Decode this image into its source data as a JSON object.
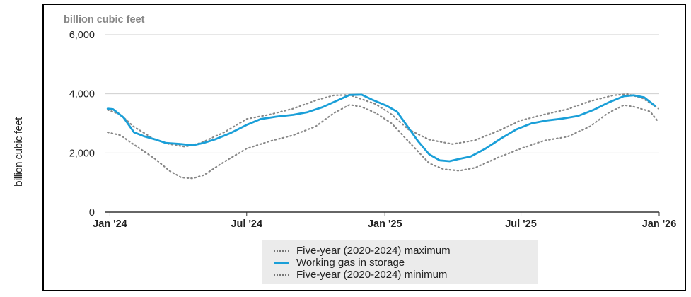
{
  "page": {
    "outer_ylabel": "billion cubic feet"
  },
  "chart_data": {
    "type": "line",
    "ylabel": "billion cubic feet",
    "ylim": [
      0,
      6000
    ],
    "yticks": [
      0,
      2000,
      4000,
      6000
    ],
    "ytick_labels": [
      "0",
      "2,000",
      "4,000",
      "6,000"
    ],
    "x_range": [
      "2023-12-25",
      "2026-01-01"
    ],
    "xticks": [
      {
        "date": "2024-01-01",
        "label": "Jan '24"
      },
      {
        "date": "2024-07-01",
        "label": "Jul '24"
      },
      {
        "date": "2025-01-01",
        "label": "Jan '25"
      },
      {
        "date": "2025-07-01",
        "label": "Jul '25"
      },
      {
        "date": "2026-01-01",
        "label": "Jan '26"
      }
    ],
    "grid": "horizontal",
    "legend_position": "bottom-center",
    "series": [
      {
        "name": "Five-year (2020-2024) maximum",
        "style": "dotted",
        "color": "#888888",
        "points": [
          [
            "2023-12-29",
            3460
          ],
          [
            "2024-01-15",
            3300
          ],
          [
            "2024-02-01",
            2900
          ],
          [
            "2024-03-01",
            2450
          ],
          [
            "2024-03-20",
            2300
          ],
          [
            "2024-04-10",
            2210
          ],
          [
            "2024-05-01",
            2340
          ],
          [
            "2024-06-01",
            2700
          ],
          [
            "2024-07-01",
            3150
          ],
          [
            "2024-08-01",
            3300
          ],
          [
            "2024-09-01",
            3500
          ],
          [
            "2024-10-01",
            3780
          ],
          [
            "2024-10-25",
            3950
          ],
          [
            "2024-11-15",
            3960
          ],
          [
            "2024-12-01",
            3820
          ],
          [
            "2024-12-20",
            3650
          ],
          [
            "2025-01-10",
            3300
          ],
          [
            "2025-02-01",
            2800
          ],
          [
            "2025-03-01",
            2450
          ],
          [
            "2025-04-01",
            2300
          ],
          [
            "2025-05-01",
            2430
          ],
          [
            "2025-06-01",
            2750
          ],
          [
            "2025-07-01",
            3100
          ],
          [
            "2025-08-01",
            3300
          ],
          [
            "2025-09-01",
            3480
          ],
          [
            "2025-10-01",
            3750
          ],
          [
            "2025-11-01",
            3950
          ],
          [
            "2025-11-20",
            3990
          ],
          [
            "2025-12-10",
            3850
          ],
          [
            "2025-12-31",
            3500
          ]
        ]
      },
      {
        "name": "Working gas in storage",
        "style": "solid",
        "color": "#1a9fd8",
        "points": [
          [
            "2023-12-29",
            3500
          ],
          [
            "2024-01-05",
            3480
          ],
          [
            "2024-01-19",
            3200
          ],
          [
            "2024-02-02",
            2700
          ],
          [
            "2024-02-16",
            2560
          ],
          [
            "2024-03-01",
            2460
          ],
          [
            "2024-03-15",
            2340
          ],
          [
            "2024-04-05",
            2300
          ],
          [
            "2024-04-20",
            2260
          ],
          [
            "2024-05-05",
            2340
          ],
          [
            "2024-05-20",
            2460
          ],
          [
            "2024-06-10",
            2680
          ],
          [
            "2024-07-01",
            2950
          ],
          [
            "2024-07-20",
            3150
          ],
          [
            "2024-08-10",
            3230
          ],
          [
            "2024-09-01",
            3290
          ],
          [
            "2024-09-20",
            3380
          ],
          [
            "2024-10-10",
            3550
          ],
          [
            "2024-11-01",
            3800
          ],
          [
            "2024-11-15",
            3960
          ],
          [
            "2024-12-01",
            3970
          ],
          [
            "2024-12-15",
            3800
          ],
          [
            "2025-01-03",
            3600
          ],
          [
            "2025-01-17",
            3400
          ],
          [
            "2025-01-31",
            2900
          ],
          [
            "2025-02-14",
            2400
          ],
          [
            "2025-03-01",
            1950
          ],
          [
            "2025-03-15",
            1750
          ],
          [
            "2025-03-28",
            1720
          ],
          [
            "2025-04-10",
            1800
          ],
          [
            "2025-04-25",
            1880
          ],
          [
            "2025-05-15",
            2150
          ],
          [
            "2025-06-05",
            2500
          ],
          [
            "2025-06-25",
            2800
          ],
          [
            "2025-07-15",
            3000
          ],
          [
            "2025-08-05",
            3100
          ],
          [
            "2025-08-25",
            3160
          ],
          [
            "2025-09-15",
            3250
          ],
          [
            "2025-10-05",
            3450
          ],
          [
            "2025-10-25",
            3700
          ],
          [
            "2025-11-15",
            3920
          ],
          [
            "2025-11-28",
            3950
          ],
          [
            "2025-12-12",
            3880
          ],
          [
            "2025-12-26",
            3600
          ]
        ]
      },
      {
        "name": "Five-year (2020-2024) minimum",
        "style": "dotted",
        "color": "#888888",
        "points": [
          [
            "2023-12-29",
            2700
          ],
          [
            "2024-01-15",
            2600
          ],
          [
            "2024-02-01",
            2300
          ],
          [
            "2024-03-01",
            1800
          ],
          [
            "2024-03-20",
            1400
          ],
          [
            "2024-04-05",
            1170
          ],
          [
            "2024-04-20",
            1140
          ],
          [
            "2024-05-05",
            1250
          ],
          [
            "2024-06-01",
            1700
          ],
          [
            "2024-07-01",
            2150
          ],
          [
            "2024-08-01",
            2400
          ],
          [
            "2024-09-01",
            2600
          ],
          [
            "2024-10-01",
            2900
          ],
          [
            "2024-10-25",
            3350
          ],
          [
            "2024-11-15",
            3630
          ],
          [
            "2024-12-01",
            3560
          ],
          [
            "2024-12-20",
            3350
          ],
          [
            "2025-01-10",
            3000
          ],
          [
            "2025-02-01",
            2400
          ],
          [
            "2025-03-01",
            1650
          ],
          [
            "2025-03-20",
            1450
          ],
          [
            "2025-04-10",
            1400
          ],
          [
            "2025-05-01",
            1500
          ],
          [
            "2025-06-01",
            1850
          ],
          [
            "2025-07-01",
            2150
          ],
          [
            "2025-08-01",
            2420
          ],
          [
            "2025-09-01",
            2550
          ],
          [
            "2025-10-01",
            2900
          ],
          [
            "2025-10-25",
            3350
          ],
          [
            "2025-11-15",
            3620
          ],
          [
            "2025-12-01",
            3550
          ],
          [
            "2025-12-20",
            3400
          ],
          [
            "2025-12-31",
            3050
          ]
        ]
      }
    ]
  }
}
